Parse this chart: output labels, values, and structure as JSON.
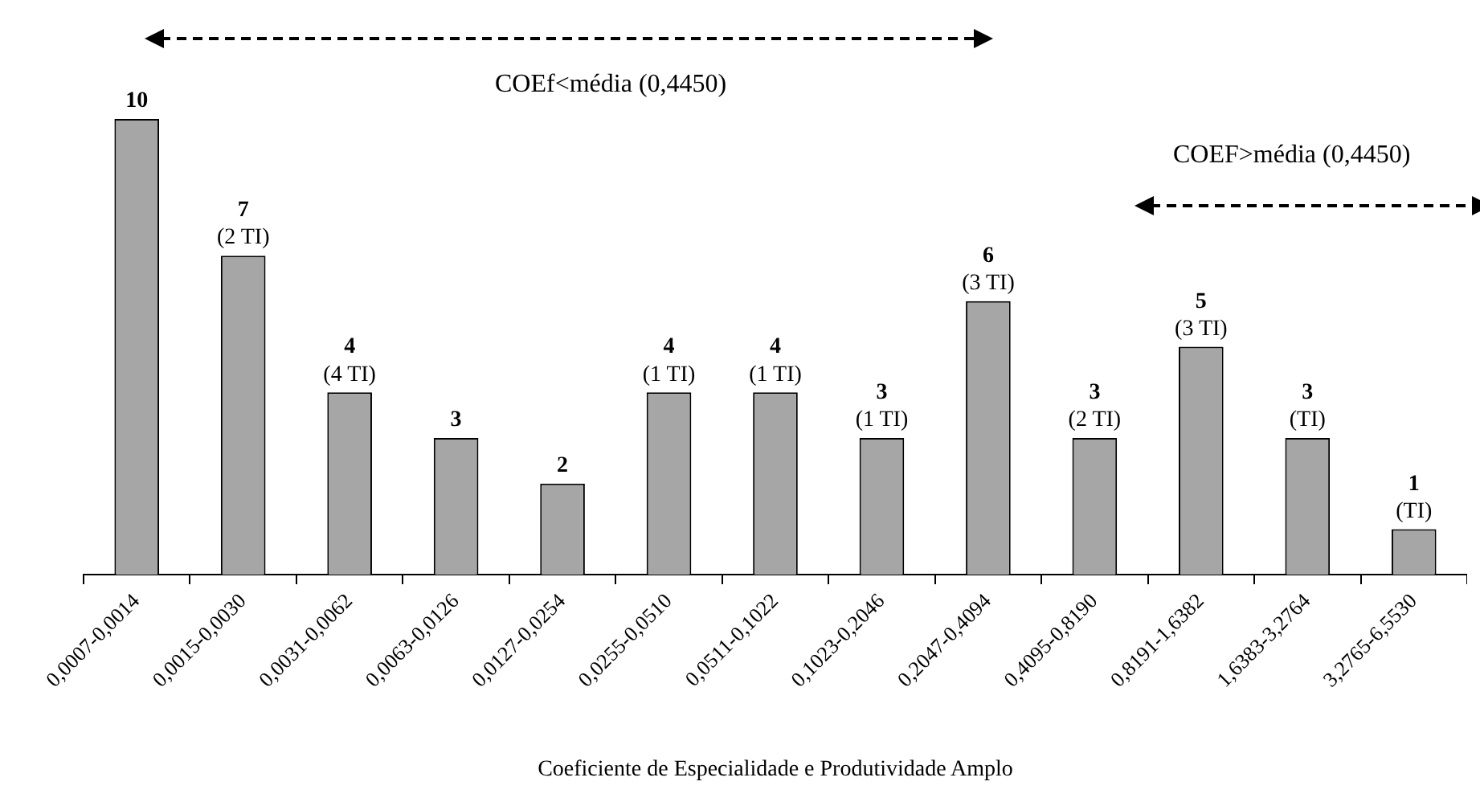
{
  "chart_data": {
    "type": "bar",
    "xlabel": "Coeficiente de Especialidade e Produtividade Amplo",
    "categories": [
      "0,0007-0,0014",
      "0,0015-0,0030",
      "0,0031-0,0062",
      "0,0063-0,0126",
      "0,0127-0,0254",
      "0,0255-0,0510",
      "0,0511-0,1022",
      "0,1023-0,2046",
      "0,2047-0,4094",
      "0,4095-0,8190",
      "0,8191-1,6382",
      "1,6383-3,2764",
      "3,2765-6,5530"
    ],
    "values": [
      10,
      7,
      4,
      3,
      2,
      4,
      4,
      3,
      6,
      3,
      5,
      3,
      1
    ],
    "value_labels": [
      "10",
      "7\n(2 TI)",
      "4\n(4 TI)",
      "3",
      "2",
      "4\n(1 TI)",
      "4\n(1 TI)",
      "3\n(1 TI)",
      "6\n(3 TI)",
      "3\n(2 TI)",
      "5\n(3 TI)",
      "3\n(TI)",
      "1\n(TI)"
    ],
    "color": "#a6a6a6",
    "annotations": [
      "COEf<média (0,4450)",
      "COEF>média (0,4450)"
    ],
    "grid": false,
    "legend": false
  }
}
